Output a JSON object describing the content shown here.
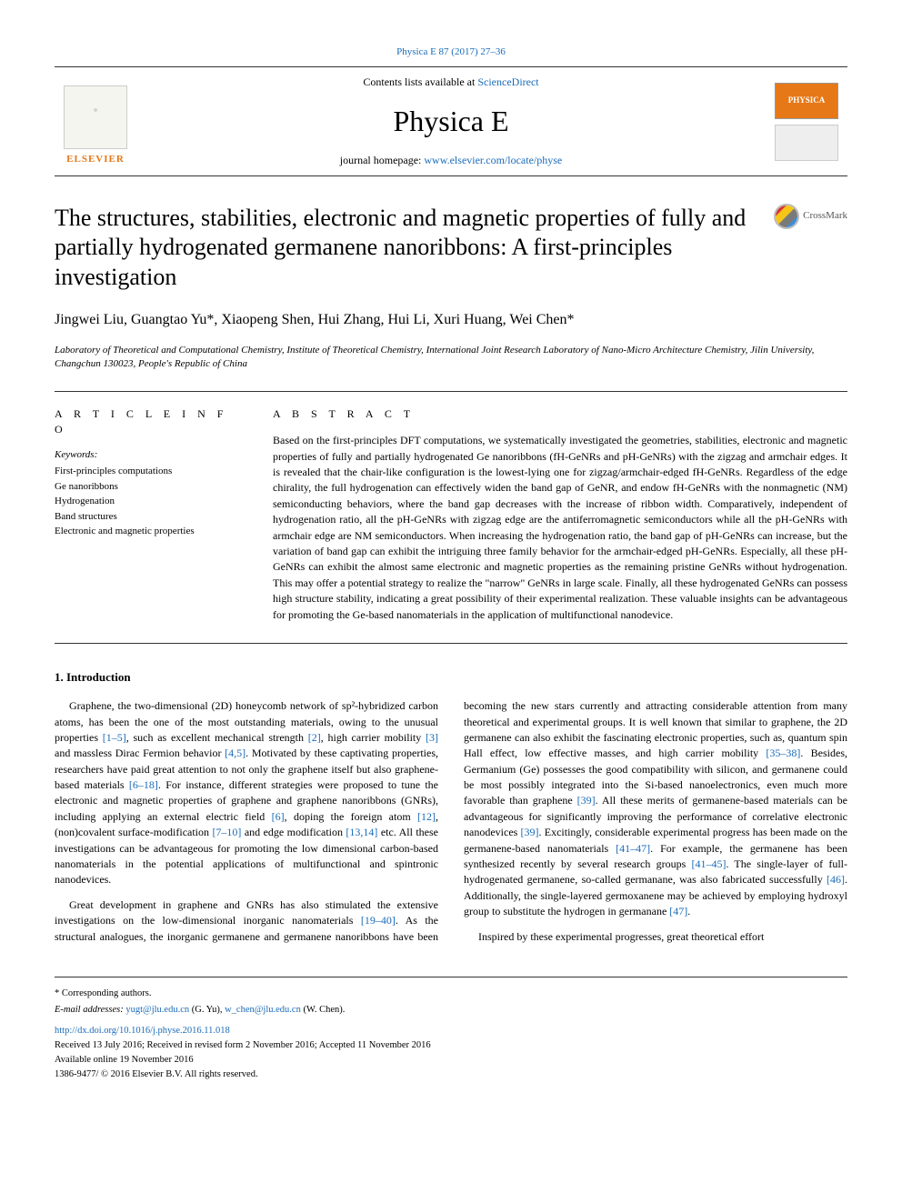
{
  "top_citation": "Physica E 87 (2017) 27–36",
  "header": {
    "contents_prefix": "Contents lists available at ",
    "contents_link": "ScienceDirect",
    "journal": "Physica E",
    "homepage_prefix": "journal homepage: ",
    "homepage_url": "www.elsevier.com/locate/physe",
    "publisher_label": "ELSEVIER",
    "physica_badge": "PHYSICA"
  },
  "crossmark_label": "CrossMark",
  "title": "The structures, stabilities, electronic and magnetic properties of fully and partially hydrogenated germanene nanoribbons: A first-principles investigation",
  "authors_html": "Jingwei Liu, Guangtao Yu*, Xiaopeng Shen, Hui Zhang, Hui Li, Xuri Huang, Wei Chen*",
  "affiliation": "Laboratory of Theoretical and Computational Chemistry, Institute of Theoretical Chemistry, International Joint Research Laboratory of Nano-Micro Architecture Chemistry, Jilin University, Changchun 130023, People's Republic of China",
  "article_info": {
    "label": "A R T I C L E   I N F O",
    "keywords_label": "Keywords:",
    "keywords": [
      "First-principles computations",
      "Ge nanoribbons",
      "Hydrogenation",
      "Band structures",
      "Electronic and magnetic properties"
    ]
  },
  "abstract": {
    "label": "A B S T R A C T",
    "text": "Based on the first-principles DFT computations, we systematically investigated the geometries, stabilities, electronic and magnetic properties of fully and partially hydrogenated Ge nanoribbons (fH-GeNRs and pH-GeNRs) with the zigzag and armchair edges. It is revealed that the chair-like configuration is the lowest-lying one for zigzag/armchair-edged fH-GeNRs. Regardless of the edge chirality, the full hydrogenation can effectively widen the band gap of GeNR, and endow fH-GeNRs with the nonmagnetic (NM) semiconducting behaviors, where the band gap decreases with the increase of ribbon width. Comparatively, independent of hydrogenation ratio, all the pH-GeNRs with zigzag edge are the antiferromagnetic semiconductors while all the pH-GeNRs with armchair edge are NM semiconductors. When increasing the hydrogenation ratio, the band gap of pH-GeNRs can increase, but the variation of band gap can exhibit the intriguing three family behavior for the armchair-edged pH-GeNRs. Especially, all these pH-GeNRs can exhibit the almost same electronic and magnetic properties as the remaining pristine GeNRs without hydrogenation. This may offer a potential strategy to realize the \"narrow\" GeNRs in large scale. Finally, all these hydrogenated GeNRs can possess high structure stability, indicating a great possibility of their experimental realization. These valuable insights can be advantageous for promoting the Ge-based nanomaterials in the application of multifunctional nanodevice."
  },
  "intro": {
    "heading": "1. Introduction",
    "p1_a": "Graphene, the two-dimensional (2D) honeycomb network of sp²-hybridized carbon atoms, has been the one of the most outstanding materials, owing to the unusual properties ",
    "ref1": "[1–5]",
    "p1_b": ", such as excellent mechanical strength ",
    "ref2": "[2]",
    "p1_c": ", high carrier mobility ",
    "ref3": "[3]",
    "p1_d": " and massless Dirac Fermion behavior ",
    "ref4": "[4,5]",
    "p1_e": ". Motivated by these captivating properties, researchers have paid great attention to not only the graphene itself but also graphene-based materials ",
    "ref5": "[6–18]",
    "p1_f": ". For instance, different strategies were proposed to tune the electronic and magnetic properties of graphene and graphene nanoribbons (GNRs), including applying an external electric field ",
    "ref6": "[6]",
    "p1_g": ", doping the foreign atom ",
    "ref7": "[12]",
    "p1_h": ", (non)covalent surface-modification ",
    "ref8": "[7–10]",
    "p1_i": " and edge modification ",
    "ref9": "[13,14]",
    "p1_j": " etc. All these investigations can be advantageous for promoting the low dimensional carbon-based nanomaterials in the potential applications of multifunctional and spintronic nanodevices.",
    "p2_a": "Great development in graphene and GNRs has also stimulated the extensive investigations on the low-dimensional inorganic nanomaterials ",
    "ref10": "[19–40]",
    "p2_b": ". As the structural analogues, the inorganic germanene and germanene nanoribbons have been becoming the new stars currently and attracting considerable attention from many theoretical and experimental groups. It is well known that similar to graphene, the 2D germanene can also exhibit the fascinating electronic properties, such as, quantum spin Hall effect, low effective masses, and high carrier mobility ",
    "ref11": "[35–38]",
    "p2_c": ". Besides, Germanium (Ge) possesses the good compatibility with silicon, and germanene could be most possibly integrated into the Si-based nanoelectronics, even much more favorable than graphene ",
    "ref12": "[39]",
    "p2_d": ". All these merits of germanene-based materials can be advantageous for significantly improving the performance of correlative electronic nanodevices ",
    "ref13": "[39]",
    "p2_e": ". Excitingly, considerable experimental progress has been made on the germanene-based nanomaterials ",
    "ref14": "[41–47]",
    "p2_f": ". For example, the germanene has been synthesized recently by several research groups ",
    "ref15": "[41–45]",
    "p2_g": ". The single-layer of full-hydrogenated germanene, so-called germanane, was also fabricated successfully ",
    "ref16": "[46]",
    "p2_h": ". Additionally, the single-layered germoxanene may be achieved by employing hydroxyl group to substitute the hydrogen in germanane ",
    "ref17": "[47]",
    "p2_i": ".",
    "p3": "Inspired by these experimental progresses, great theoretical effort"
  },
  "footer": {
    "corresponding": "* Corresponding authors.",
    "email_label": "E-mail addresses: ",
    "email1": "yugt@jlu.edu.cn",
    "email1_name": " (G. Yu), ",
    "email2": "w_chen@jlu.edu.cn",
    "email2_name": " (W. Chen).",
    "doi": "http://dx.doi.org/10.1016/j.physe.2016.11.018",
    "received": "Received 13 July 2016; Received in revised form 2 November 2016; Accepted 11 November 2016",
    "available": "Available online 19 November 2016",
    "copyright": "1386-9477/ © 2016 Elsevier B.V. All rights reserved."
  },
  "colors": {
    "link": "#1a6bb8",
    "elsevier_orange": "#e67817",
    "text": "#000000",
    "rule": "#333333"
  }
}
